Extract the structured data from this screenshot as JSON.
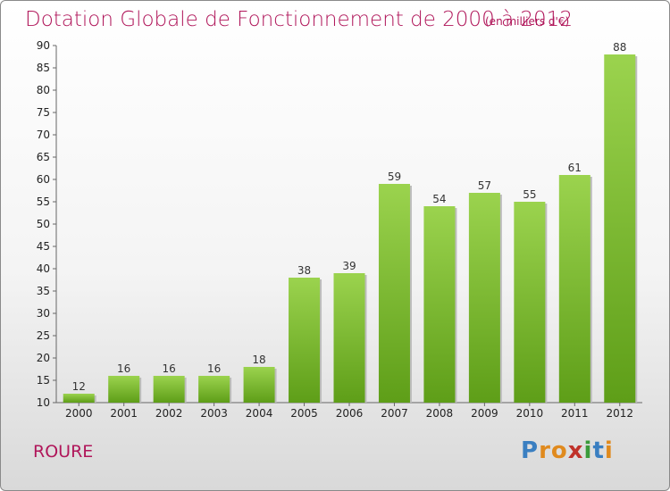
{
  "chart_data": {
    "type": "bar",
    "title": "Dotation Globale de Fonctionnement de 2000 à 2012",
    "unit_note": "(en milliers d'€)",
    "categories": [
      "2000",
      "2001",
      "2002",
      "2003",
      "2004",
      "2005",
      "2006",
      "2007",
      "2008",
      "2009",
      "2010",
      "2011",
      "2012"
    ],
    "values": [
      12,
      16,
      16,
      16,
      18,
      38,
      39,
      59,
      54,
      57,
      55,
      61,
      88
    ],
    "ylim": [
      10,
      90
    ],
    "yticks": [
      10,
      15,
      20,
      25,
      30,
      35,
      40,
      45,
      50,
      55,
      60,
      65,
      70,
      75,
      80,
      85,
      90
    ],
    "grid": false,
    "bar_color_top": "#9bd34e",
    "bar_color_bottom": "#5e9e18"
  },
  "commune": "ROURE",
  "logo": {
    "letters": [
      "P",
      "r",
      "o",
      "x",
      "i",
      "t",
      "i"
    ],
    "colors": [
      "#3a7fc1",
      "#e08a1e",
      "#e08a1e",
      "#c0322a",
      "#3a9b3a",
      "#3a7fc1",
      "#e08a1e"
    ]
  }
}
